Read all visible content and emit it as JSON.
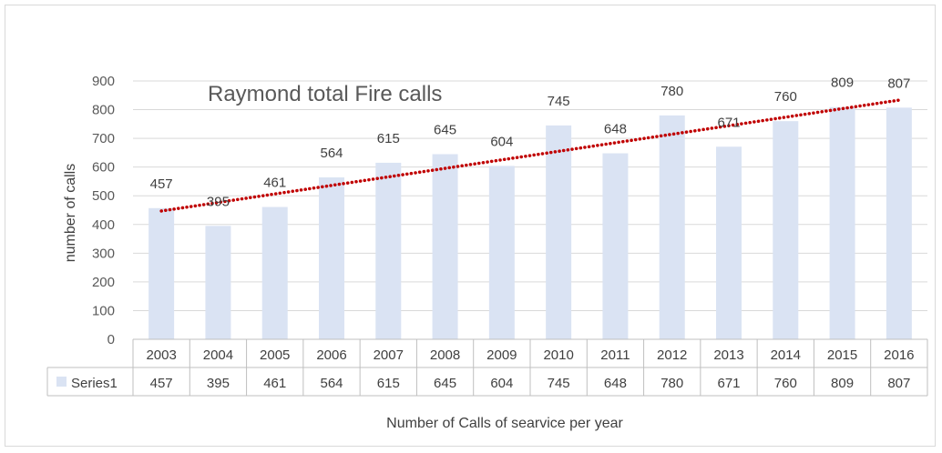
{
  "chart_data": {
    "type": "bar",
    "title": "Raymond total Fire calls",
    "xlabel": "Number of Calls of searvice per year",
    "ylabel": "number of calls",
    "categories": [
      "2003",
      "2004",
      "2005",
      "2006",
      "2007",
      "2008",
      "2009",
      "2010",
      "2011",
      "2012",
      "2013",
      "2014",
      "2015",
      "2016"
    ],
    "series": [
      {
        "name": "Series1",
        "values": [
          457,
          395,
          461,
          564,
          615,
          645,
          604,
          745,
          648,
          780,
          671,
          760,
          809,
          807
        ]
      }
    ],
    "ylim": [
      0,
      900
    ],
    "yticks": [
      0,
      100,
      200,
      300,
      400,
      500,
      600,
      700,
      800,
      900
    ],
    "grid": true,
    "trendline": {
      "type": "linear",
      "style": "dotted",
      "color": "#c00000"
    },
    "data_table": true,
    "colors": {
      "bar": "#dae3f3",
      "gridline": "#d9d9d9",
      "trendline": "#c00000"
    }
  }
}
